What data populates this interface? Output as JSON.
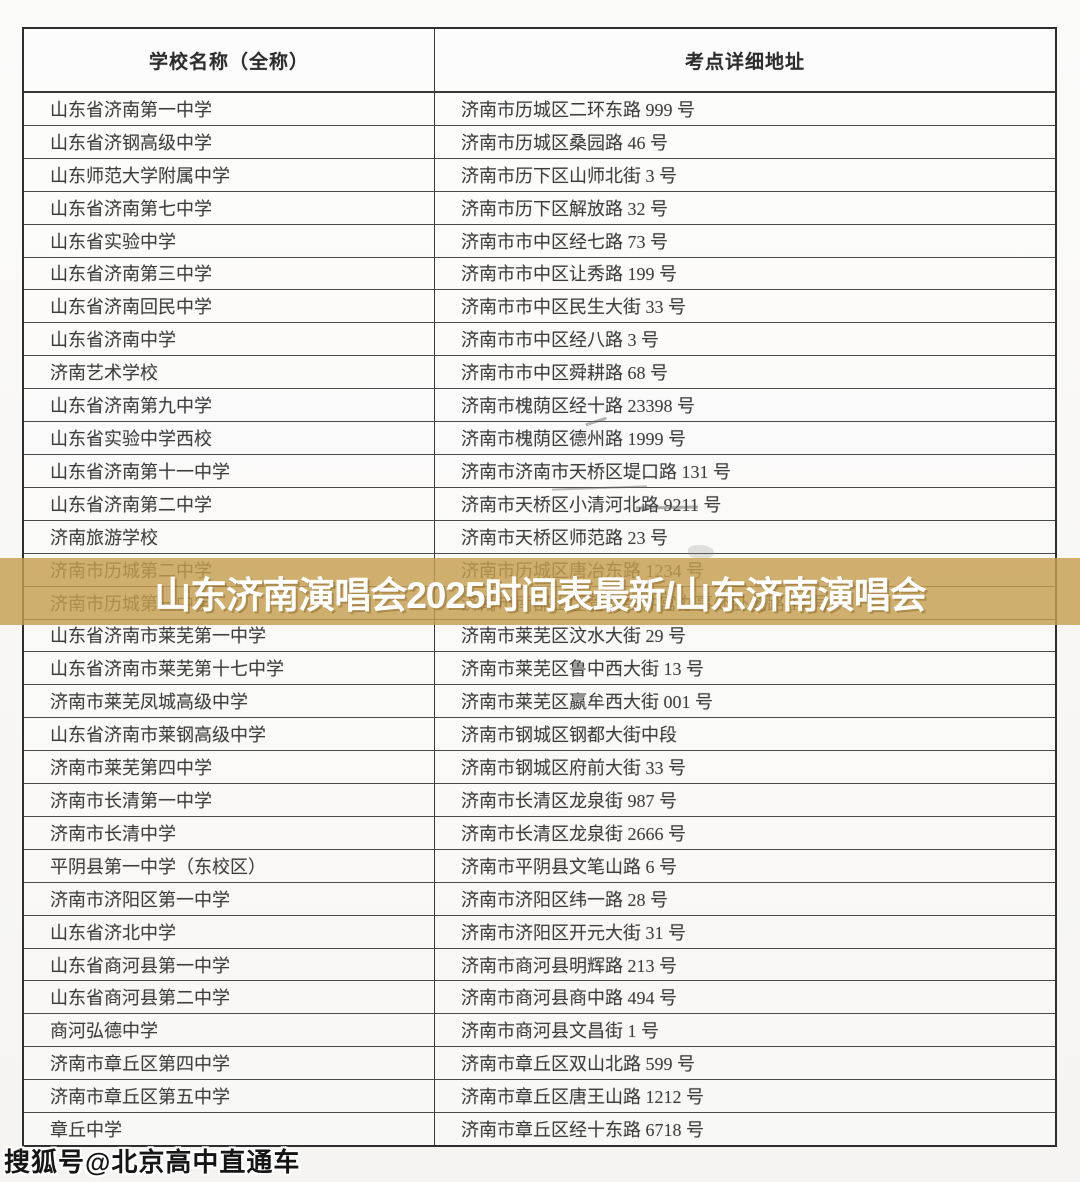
{
  "table": {
    "header": {
      "school": "学校名称（全称）",
      "address": "考点详细地址"
    },
    "rows": [
      {
        "school": "山东省济南第一中学",
        "address": "济南市历城区二环东路 999 号"
      },
      {
        "school": "山东省济钢高级中学",
        "address": "济南市历城区桑园路 46 号"
      },
      {
        "school": "山东师范大学附属中学",
        "address": "济南市历下区山师北街 3 号"
      },
      {
        "school": "山东省济南第七中学",
        "address": "济南市历下区解放路 32 号"
      },
      {
        "school": "山东省实验中学",
        "address": "济南市市中区经七路 73 号"
      },
      {
        "school": "山东省济南第三中学",
        "address": "济南市市中区让秀路 199 号"
      },
      {
        "school": "山东省济南回民中学",
        "address": "济南市市中区民生大街 33 号"
      },
      {
        "school": "山东省济南中学",
        "address": "济南市市中区经八路 3 号"
      },
      {
        "school": "济南艺术学校",
        "address": "济南市市中区舜耕路 68 号"
      },
      {
        "school": "山东省济南第九中学",
        "address": "济南市槐荫区经十路 23398 号"
      },
      {
        "school": "山东省实验中学西校",
        "address": "济南市槐荫区德州路 1999 号"
      },
      {
        "school": "山东省济南第十一中学",
        "address": "济南市济南市天桥区堤口路 131 号"
      },
      {
        "school": "山东省济南第二中学",
        "address": "济南市天桥区小清河北路 9211 号"
      },
      {
        "school": "济南旅游学校",
        "address": "济南市天桥区师范路 23 号"
      },
      {
        "school": "济南市历城第二中学",
        "address": "济南市历城区唐冶东路 1234 号"
      },
      {
        "school": "济南市历城第一中学",
        "address": "济南市南部山区管委会仲宫办事处卧虎路 14 号"
      },
      {
        "school": "山东省济南市莱芜第一中学",
        "address": "济南市莱芜区汶水大街 29 号"
      },
      {
        "school": "山东省济南市莱芜第十七中学",
        "address": "济南市莱芜区鲁中西大街 13 号"
      },
      {
        "school": "济南市莱芜凤城高级中学",
        "address": "济南市莱芜区嬴牟西大街 001 号"
      },
      {
        "school": "山东省济南市莱钢高级中学",
        "address": "济南市钢城区钢都大街中段"
      },
      {
        "school": "济南市莱芜第四中学",
        "address": "济南市钢城区府前大街 33 号"
      },
      {
        "school": "济南市长清第一中学",
        "address": "济南市长清区龙泉街 987 号"
      },
      {
        "school": "济南市长清中学",
        "address": "济南市长清区龙泉街 2666 号"
      },
      {
        "school": "平阴县第一中学（东校区）",
        "address": "济南市平阴县文笔山路 6 号"
      },
      {
        "school": "济南市济阳区第一中学",
        "address": "济南市济阳区纬一路 28 号"
      },
      {
        "school": "山东省济北中学",
        "address": "济南市济阳区开元大街 31 号"
      },
      {
        "school": "山东省商河县第一中学",
        "address": "济南市商河县明辉路 213 号"
      },
      {
        "school": "山东省商河县第二中学",
        "address": "济南市商河县商中路 494 号"
      },
      {
        "school": "商河弘德中学",
        "address": "济南市商河县文昌街 1 号"
      },
      {
        "school": "济南市章丘区第四中学",
        "address": "济南市章丘区双山北路 599 号"
      },
      {
        "school": "济南市章丘区第五中学",
        "address": "济南市章丘区唐王山路 1212 号"
      },
      {
        "school": "章丘中学",
        "address": "济南市章丘区经十东路 6718 号"
      }
    ]
  },
  "banner": {
    "text": "山东济南演唱会2025时间表最新/山东济南演唱会",
    "background_color": "#C69F4F",
    "text_color": "#FFFFFF"
  },
  "watermark": {
    "text": "搜狐号@北京高中直通车",
    "text_color": "#151515"
  }
}
